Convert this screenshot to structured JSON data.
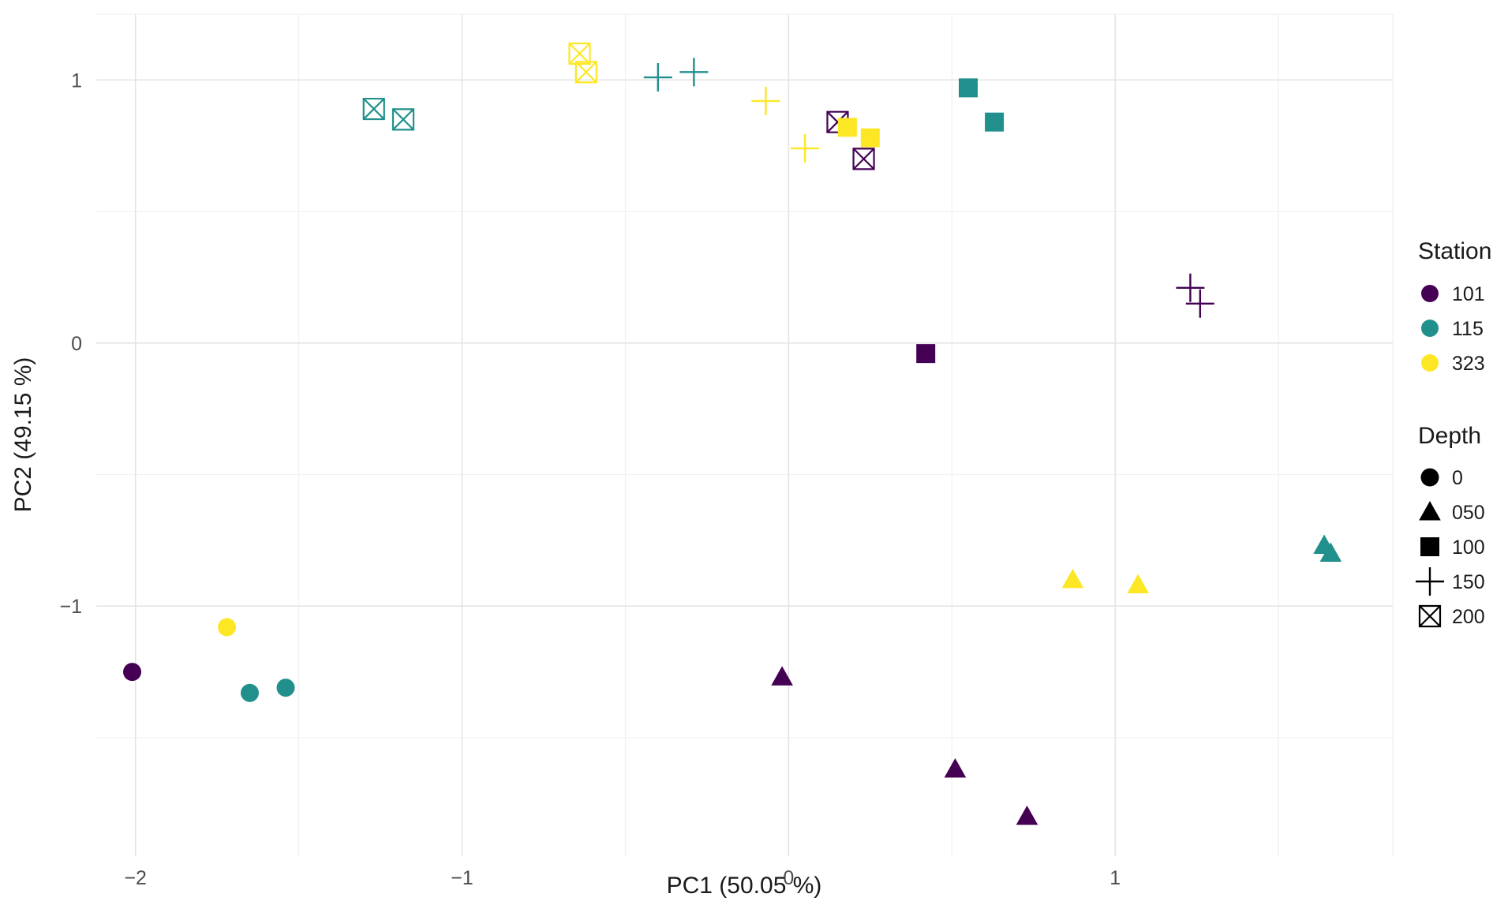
{
  "legend": {
    "station_title": "Station",
    "depth_title": "Depth"
  },
  "chart_data": {
    "type": "scatter",
    "title": "",
    "xlabel": "PC1 (50.05 %)",
    "ylabel": "PC2 (49.15 %)",
    "xlim": [
      -2.12,
      1.85
    ],
    "ylim": [
      -1.95,
      1.25
    ],
    "x_ticks": [
      -2,
      -1,
      0,
      1
    ],
    "x_tick_labels": [
      "−2",
      "−1",
      "0",
      "1"
    ],
    "y_ticks": [
      -1,
      0,
      1
    ],
    "y_tick_labels": [
      "−1",
      "0",
      "1"
    ],
    "x_minor_gridlines": [
      -1.5,
      -0.5,
      0.5,
      1.5,
      1.85
    ],
    "y_minor_gridlines": [
      -1.5,
      -0.5,
      0.5,
      1.25
    ],
    "grid": true,
    "legend_position": "right",
    "background": "#ffffff",
    "major_grid_color": "#e4e4e4",
    "minor_grid_color": "#f1f1f1",
    "tick_label_color": "#4d4d4d",
    "stations": [
      {
        "id": "101",
        "color": "#440154"
      },
      {
        "id": "115",
        "color": "#21908c"
      },
      {
        "id": "323",
        "color": "#fde725"
      }
    ],
    "depths": [
      {
        "id": "0",
        "shape": "circle"
      },
      {
        "id": "050",
        "shape": "triangle"
      },
      {
        "id": "100",
        "shape": "square"
      },
      {
        "id": "150",
        "shape": "plus"
      },
      {
        "id": "200",
        "shape": "boxed-x"
      }
    ],
    "points": [
      {
        "station": "101",
        "depth": "0",
        "x": -2.01,
        "y": -1.25
      },
      {
        "station": "323",
        "depth": "0",
        "x": -1.72,
        "y": -1.08
      },
      {
        "station": "115",
        "depth": "0",
        "x": -1.65,
        "y": -1.33
      },
      {
        "station": "115",
        "depth": "0",
        "x": -1.54,
        "y": -1.31
      },
      {
        "station": "101",
        "depth": "050",
        "x": -0.02,
        "y": -1.27
      },
      {
        "station": "101",
        "depth": "050",
        "x": 0.51,
        "y": -1.62
      },
      {
        "station": "101",
        "depth": "050",
        "x": 0.73,
        "y": -1.8
      },
      {
        "station": "323",
        "depth": "050",
        "x": 0.87,
        "y": -0.9
      },
      {
        "station": "323",
        "depth": "050",
        "x": 1.07,
        "y": -0.92
      },
      {
        "station": "115",
        "depth": "050",
        "x": 1.64,
        "y": -0.77
      },
      {
        "station": "115",
        "depth": "050",
        "x": 1.66,
        "y": -0.8
      },
      {
        "station": "115",
        "depth": "100",
        "x": 0.55,
        "y": 0.97
      },
      {
        "station": "115",
        "depth": "100",
        "x": 0.63,
        "y": 0.84
      },
      {
        "station": "101",
        "depth": "100",
        "x": 0.42,
        "y": -0.04
      },
      {
        "station": "115",
        "depth": "150",
        "x": -0.4,
        "y": 1.01
      },
      {
        "station": "115",
        "depth": "150",
        "x": -0.29,
        "y": 1.03
      },
      {
        "station": "323",
        "depth": "150",
        "x": -0.07,
        "y": 0.92
      },
      {
        "station": "323",
        "depth": "150",
        "x": 0.05,
        "y": 0.74
      },
      {
        "station": "101",
        "depth": "150",
        "x": 1.23,
        "y": 0.21
      },
      {
        "station": "101",
        "depth": "150",
        "x": 1.26,
        "y": 0.15
      },
      {
        "station": "115",
        "depth": "200",
        "x": -1.27,
        "y": 0.89
      },
      {
        "station": "115",
        "depth": "200",
        "x": -1.18,
        "y": 0.85
      },
      {
        "station": "323",
        "depth": "200",
        "x": -0.64,
        "y": 1.1
      },
      {
        "station": "323",
        "depth": "200",
        "x": -0.62,
        "y": 1.03
      },
      {
        "station": "101",
        "depth": "200",
        "x": 0.15,
        "y": 0.84
      },
      {
        "station": "323",
        "depth": "100",
        "x": 0.18,
        "y": 0.82
      },
      {
        "station": "323",
        "depth": "100",
        "x": 0.25,
        "y": 0.78
      },
      {
        "station": "101",
        "depth": "200",
        "x": 0.23,
        "y": 0.7
      }
    ]
  }
}
